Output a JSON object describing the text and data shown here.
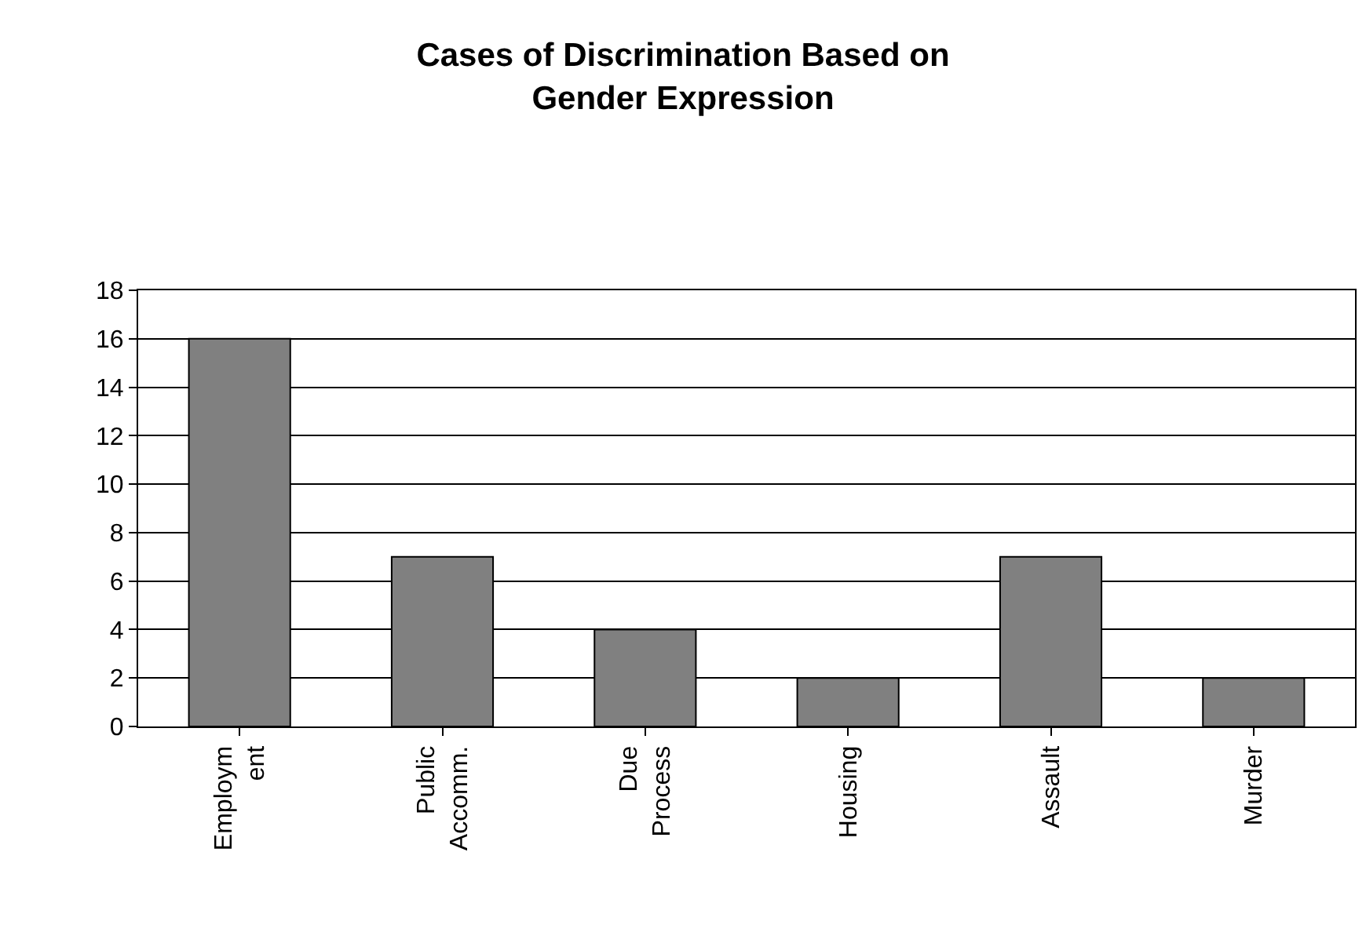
{
  "chart_data": {
    "type": "bar",
    "title": "Cases of Discrimination Based on\nGender Expression",
    "categories": [
      "Employm\nent",
      "Public\nAccomm.",
      "Due\nProcess",
      "Housing",
      "Assault",
      "Murder"
    ],
    "values": [
      16,
      7,
      4,
      2,
      7,
      2
    ],
    "color": "#808080",
    "ylim": [
      0,
      18
    ],
    "yticks": [
      0,
      2,
      4,
      6,
      8,
      10,
      12,
      14,
      16,
      18
    ],
    "grid": "y"
  }
}
